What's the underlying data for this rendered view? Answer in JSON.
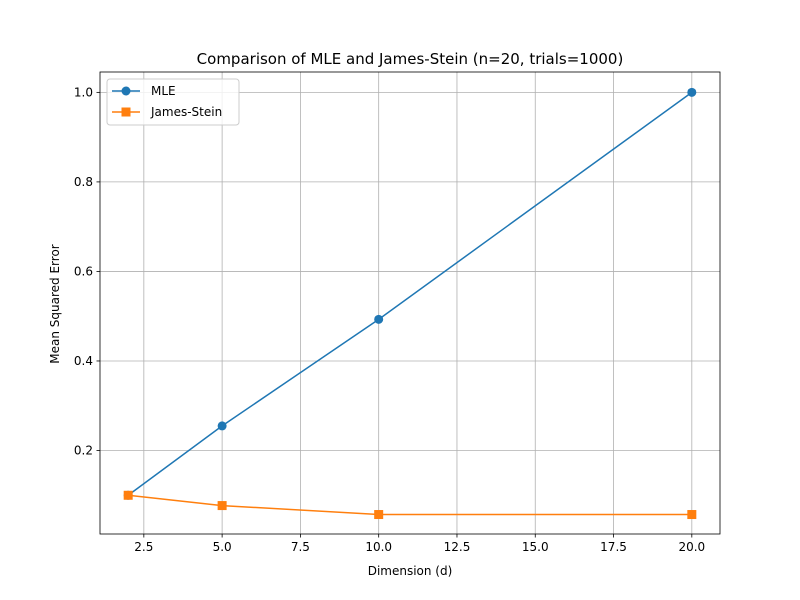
{
  "chart_data": {
    "type": "line",
    "title": "Comparison of MLE and James-Stein (n=20, trials=1000)",
    "xlabel": "Dimension (d)",
    "ylabel": "Mean Squared Error",
    "x": [
      2,
      5,
      10,
      20
    ],
    "xlim": [
      1.1,
      20.9
    ],
    "ylim": [
      0.0135,
      1.0455
    ],
    "xticks": [
      2.5,
      5.0,
      7.5,
      10.0,
      12.5,
      15.0,
      17.5,
      20.0
    ],
    "xtick_labels": [
      "2.5",
      "5.0",
      "7.5",
      "10.0",
      "12.5",
      "15.0",
      "17.5",
      "20.0"
    ],
    "yticks": [
      0.2,
      0.4,
      0.6,
      0.8,
      1.0
    ],
    "ytick_labels": [
      "0.2",
      "0.4",
      "0.6",
      "0.8",
      "1.0"
    ],
    "grid": true,
    "legend_position": "upper-left",
    "series": [
      {
        "name": "MLE",
        "values": [
          0.1,
          0.255,
          0.493,
          1.0
        ],
        "color": "#1f77b4",
        "marker": "circle"
      },
      {
        "name": "James-Stein",
        "values": [
          0.1,
          0.077,
          0.057,
          0.057
        ],
        "color": "#ff7f0e",
        "marker": "square"
      }
    ]
  }
}
